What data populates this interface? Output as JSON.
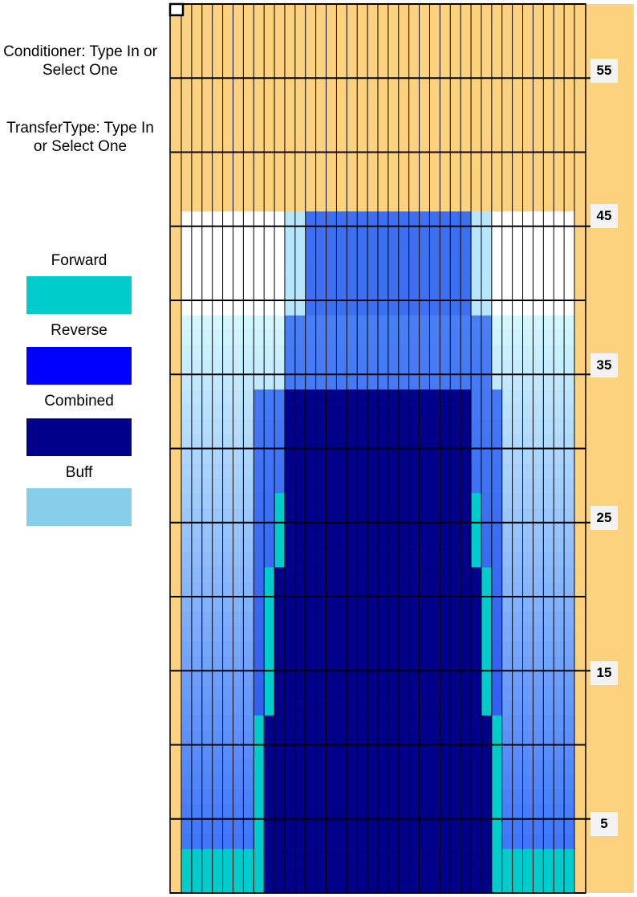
{
  "info": {
    "conditioner": "Conditioner: Type In or Select One",
    "transfer_type": "TransferType: Type In or Select One"
  },
  "legend": [
    {
      "label": "Forward",
      "color": "#00cccc"
    },
    {
      "label": "Reverse",
      "color": "#0000ff"
    },
    {
      "label": "Combined",
      "color": "#00008b"
    },
    {
      "label": "Buff",
      "color": "#87ceeb"
    }
  ],
  "grid": {
    "row_labels": [
      "55",
      "45",
      "35",
      "25",
      "15",
      "5"
    ],
    "background_color": "#fcd27f",
    "columns": 38,
    "rows": 60
  }
}
